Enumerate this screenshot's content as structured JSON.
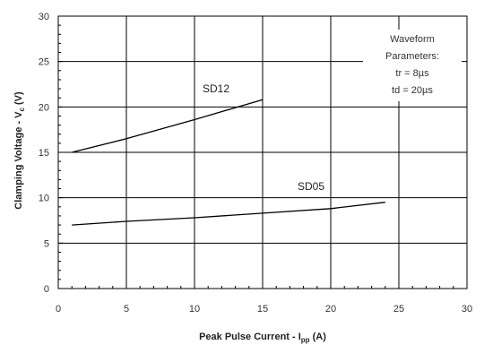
{
  "chart_data": {
    "type": "line",
    "xlabel": "Peak Pulse Current - I",
    "xlabel_sub": "pp",
    "xlabel_unit": " (A)",
    "ylabel": "Clamping Voltage - V",
    "ylabel_sub": "c",
    "ylabel_unit": " (V)",
    "xlim": [
      0,
      30
    ],
    "ylim": [
      0,
      30
    ],
    "x_ticks": [
      "0",
      "5",
      "10",
      "15",
      "20",
      "25",
      "30"
    ],
    "y_ticks": [
      "0",
      "5",
      "10",
      "15",
      "20",
      "25",
      "30"
    ],
    "grid": true,
    "series": [
      {
        "name": "SD12",
        "x": [
          1,
          5,
          10,
          15
        ],
        "y": [
          15,
          16.5,
          18.6,
          20.8
        ]
      },
      {
        "name": "SD05",
        "x": [
          1,
          5,
          10,
          15,
          20,
          24
        ],
        "y": [
          7,
          7.4,
          7.8,
          8.3,
          8.8,
          9.5
        ]
      }
    ],
    "annotation": [
      "Waveform",
      "Parameters:",
      "tr = 8µs",
      "td = 20µs"
    ]
  }
}
